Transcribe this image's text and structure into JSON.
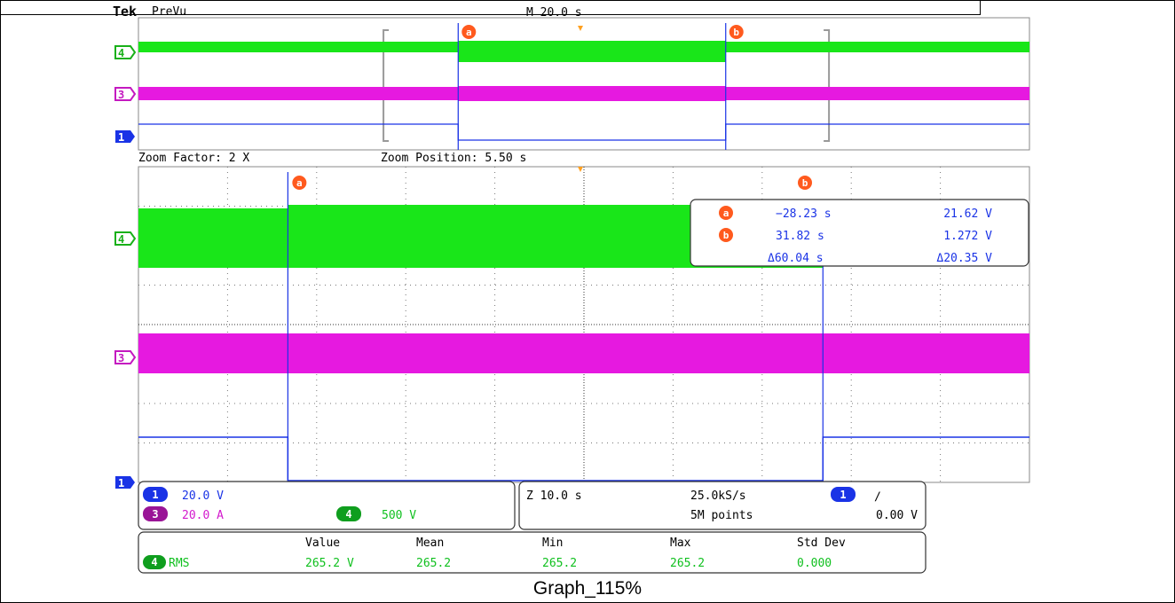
{
  "caption": "Graph_115%",
  "header": {
    "brand": "Tek",
    "mode": "PreVu",
    "timebase": "M 20.0 s"
  },
  "zoom_info": {
    "factor": "Zoom Factor: 2 X",
    "position": "Zoom Position: 5.50 s"
  },
  "markers": {
    "cursor_a": "a",
    "cursor_b": "b",
    "ch1": "1",
    "ch3": "3",
    "ch4": "4"
  },
  "cursor_readout": {
    "a_time": "−28.23 s",
    "a_value": "21.62 V",
    "b_time": "31.82 s",
    "b_value": "1.272 V",
    "delta_time": "Δ60.04 s",
    "delta_value": "Δ20.35 V"
  },
  "channel_settings": {
    "ch1": "20.0 V",
    "ch3": "20.0 A",
    "ch4": "500 V",
    "horizontal": "Z 10.0 s",
    "sample_rate": "25.0kS/s",
    "record_length": "5M points",
    "trigger_level": "0.00 V",
    "trigger_slope": "∕"
  },
  "measurements": {
    "headers": [
      "Value",
      "Mean",
      "Min",
      "Max",
      "Std Dev"
    ],
    "row": {
      "label": "RMS",
      "values": [
        "265.2 V",
        "265.2",
        "265.2",
        "265.2",
        "0.000"
      ]
    }
  },
  "colors": {
    "ch1": "#1a33e6",
    "ch3": "#e619e0",
    "ch4": "#19e619",
    "cursor": "#ff5a1e",
    "trigger": "#ffa020"
  },
  "chart_data": {
    "type": "line",
    "x_unit": "s",
    "overview_x_range": [
      -100,
      100
    ],
    "zoom_x_range": [
      -45,
      55
    ],
    "cursors": {
      "a": -28.23,
      "b": 31.82
    },
    "series": [
      {
        "name": "4",
        "points": [
          [
            -100,
            21.62
          ],
          [
            -28.23,
            21.62
          ],
          [
            -28.23,
            1.272
          ],
          [
            31.82,
            1.272
          ],
          [
            31.82,
            21.62
          ],
          [
            100,
            21.62
          ]
        ]
      },
      {
        "name": "3",
        "points": [
          [
            -100,
            0
          ],
          [
            100,
            0
          ]
        ]
      },
      {
        "name": "1",
        "points": [
          [
            -100,
            1
          ],
          [
            -28.23,
            1
          ],
          [
            -28.23,
            0
          ],
          [
            31.82,
            0
          ],
          [
            31.82,
            1
          ],
          [
            100,
            1
          ]
        ]
      }
    ]
  }
}
